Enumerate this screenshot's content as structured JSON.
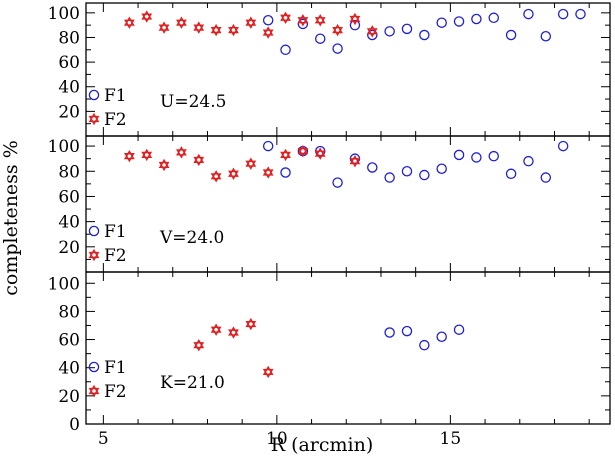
{
  "chart_data": {
    "type": "scatter",
    "xlabel": "R (arcmin)",
    "ylabel": "completeness %",
    "xlim": [
      4.5,
      19.6
    ],
    "ylim": [
      0,
      108
    ],
    "x_ticks": [
      5,
      10,
      15
    ],
    "y_ticks": [
      20,
      40,
      60,
      80,
      100
    ],
    "y_ticks_bottom": [
      0,
      20,
      40,
      60,
      80,
      100
    ],
    "colors": {
      "F1": "#1f1fd6",
      "F2": "#e02020"
    },
    "panels": [
      {
        "label": "U=24.5",
        "series": [
          {
            "name": "F1",
            "marker": "circle",
            "x": [
              9.75,
              10.25,
              10.75,
              11.25,
              11.75,
              12.25,
              12.75,
              13.25,
              13.75,
              14.25,
              14.75,
              15.25,
              15.75,
              16.25,
              16.75,
              17.25,
              17.75,
              18.25,
              18.75
            ],
            "y": [
              94,
              70,
              91,
              79,
              71,
              90,
              82,
              85,
              87,
              82,
              92,
              93,
              95,
              96,
              82,
              99,
              81,
              99,
              99
            ]
          },
          {
            "name": "F2",
            "marker": "star",
            "x": [
              5.75,
              6.25,
              6.75,
              7.25,
              7.75,
              8.25,
              8.75,
              9.25,
              9.75,
              10.25,
              10.75,
              11.25,
              11.75,
              12.25,
              12.75
            ],
            "y": [
              92,
              97,
              88,
              92,
              88,
              86,
              86,
              92,
              84,
              96,
              94,
              94,
              86,
              95,
              85
            ]
          }
        ]
      },
      {
        "label": "V=24.0",
        "series": [
          {
            "name": "F1",
            "marker": "circle",
            "x": [
              9.75,
              10.25,
              10.75,
              11.25,
              11.75,
              12.25,
              12.75,
              13.25,
              13.75,
              14.25,
              14.75,
              15.25,
              15.75,
              16.25,
              16.75,
              17.25,
              17.75,
              18.25
            ],
            "y": [
              100,
              79,
              96,
              96,
              71,
              90,
              83,
              75,
              80,
              77,
              82,
              93,
              91,
              92,
              78,
              88,
              75,
              100
            ]
          },
          {
            "name": "F2",
            "marker": "star",
            "x": [
              5.75,
              6.25,
              6.75,
              7.25,
              7.75,
              8.25,
              8.75,
              9.25,
              9.75,
              10.25,
              10.75,
              11.25,
              12.25
            ],
            "y": [
              92,
              93,
              85,
              95,
              89,
              76,
              78,
              86,
              79,
              93,
              96,
              94,
              88
            ]
          }
        ]
      },
      {
        "label": "K=21.0",
        "series": [
          {
            "name": "F1",
            "marker": "circle",
            "x": [
              13.25,
              13.75,
              14.25,
              14.75,
              15.25
            ],
            "y": [
              65,
              66,
              56,
              62,
              67
            ]
          },
          {
            "name": "F2",
            "marker": "star",
            "x": [
              7.75,
              8.25,
              8.75,
              9.25,
              9.75
            ],
            "y": [
              56,
              67,
              65,
              71,
              37
            ]
          }
        ]
      }
    ]
  }
}
